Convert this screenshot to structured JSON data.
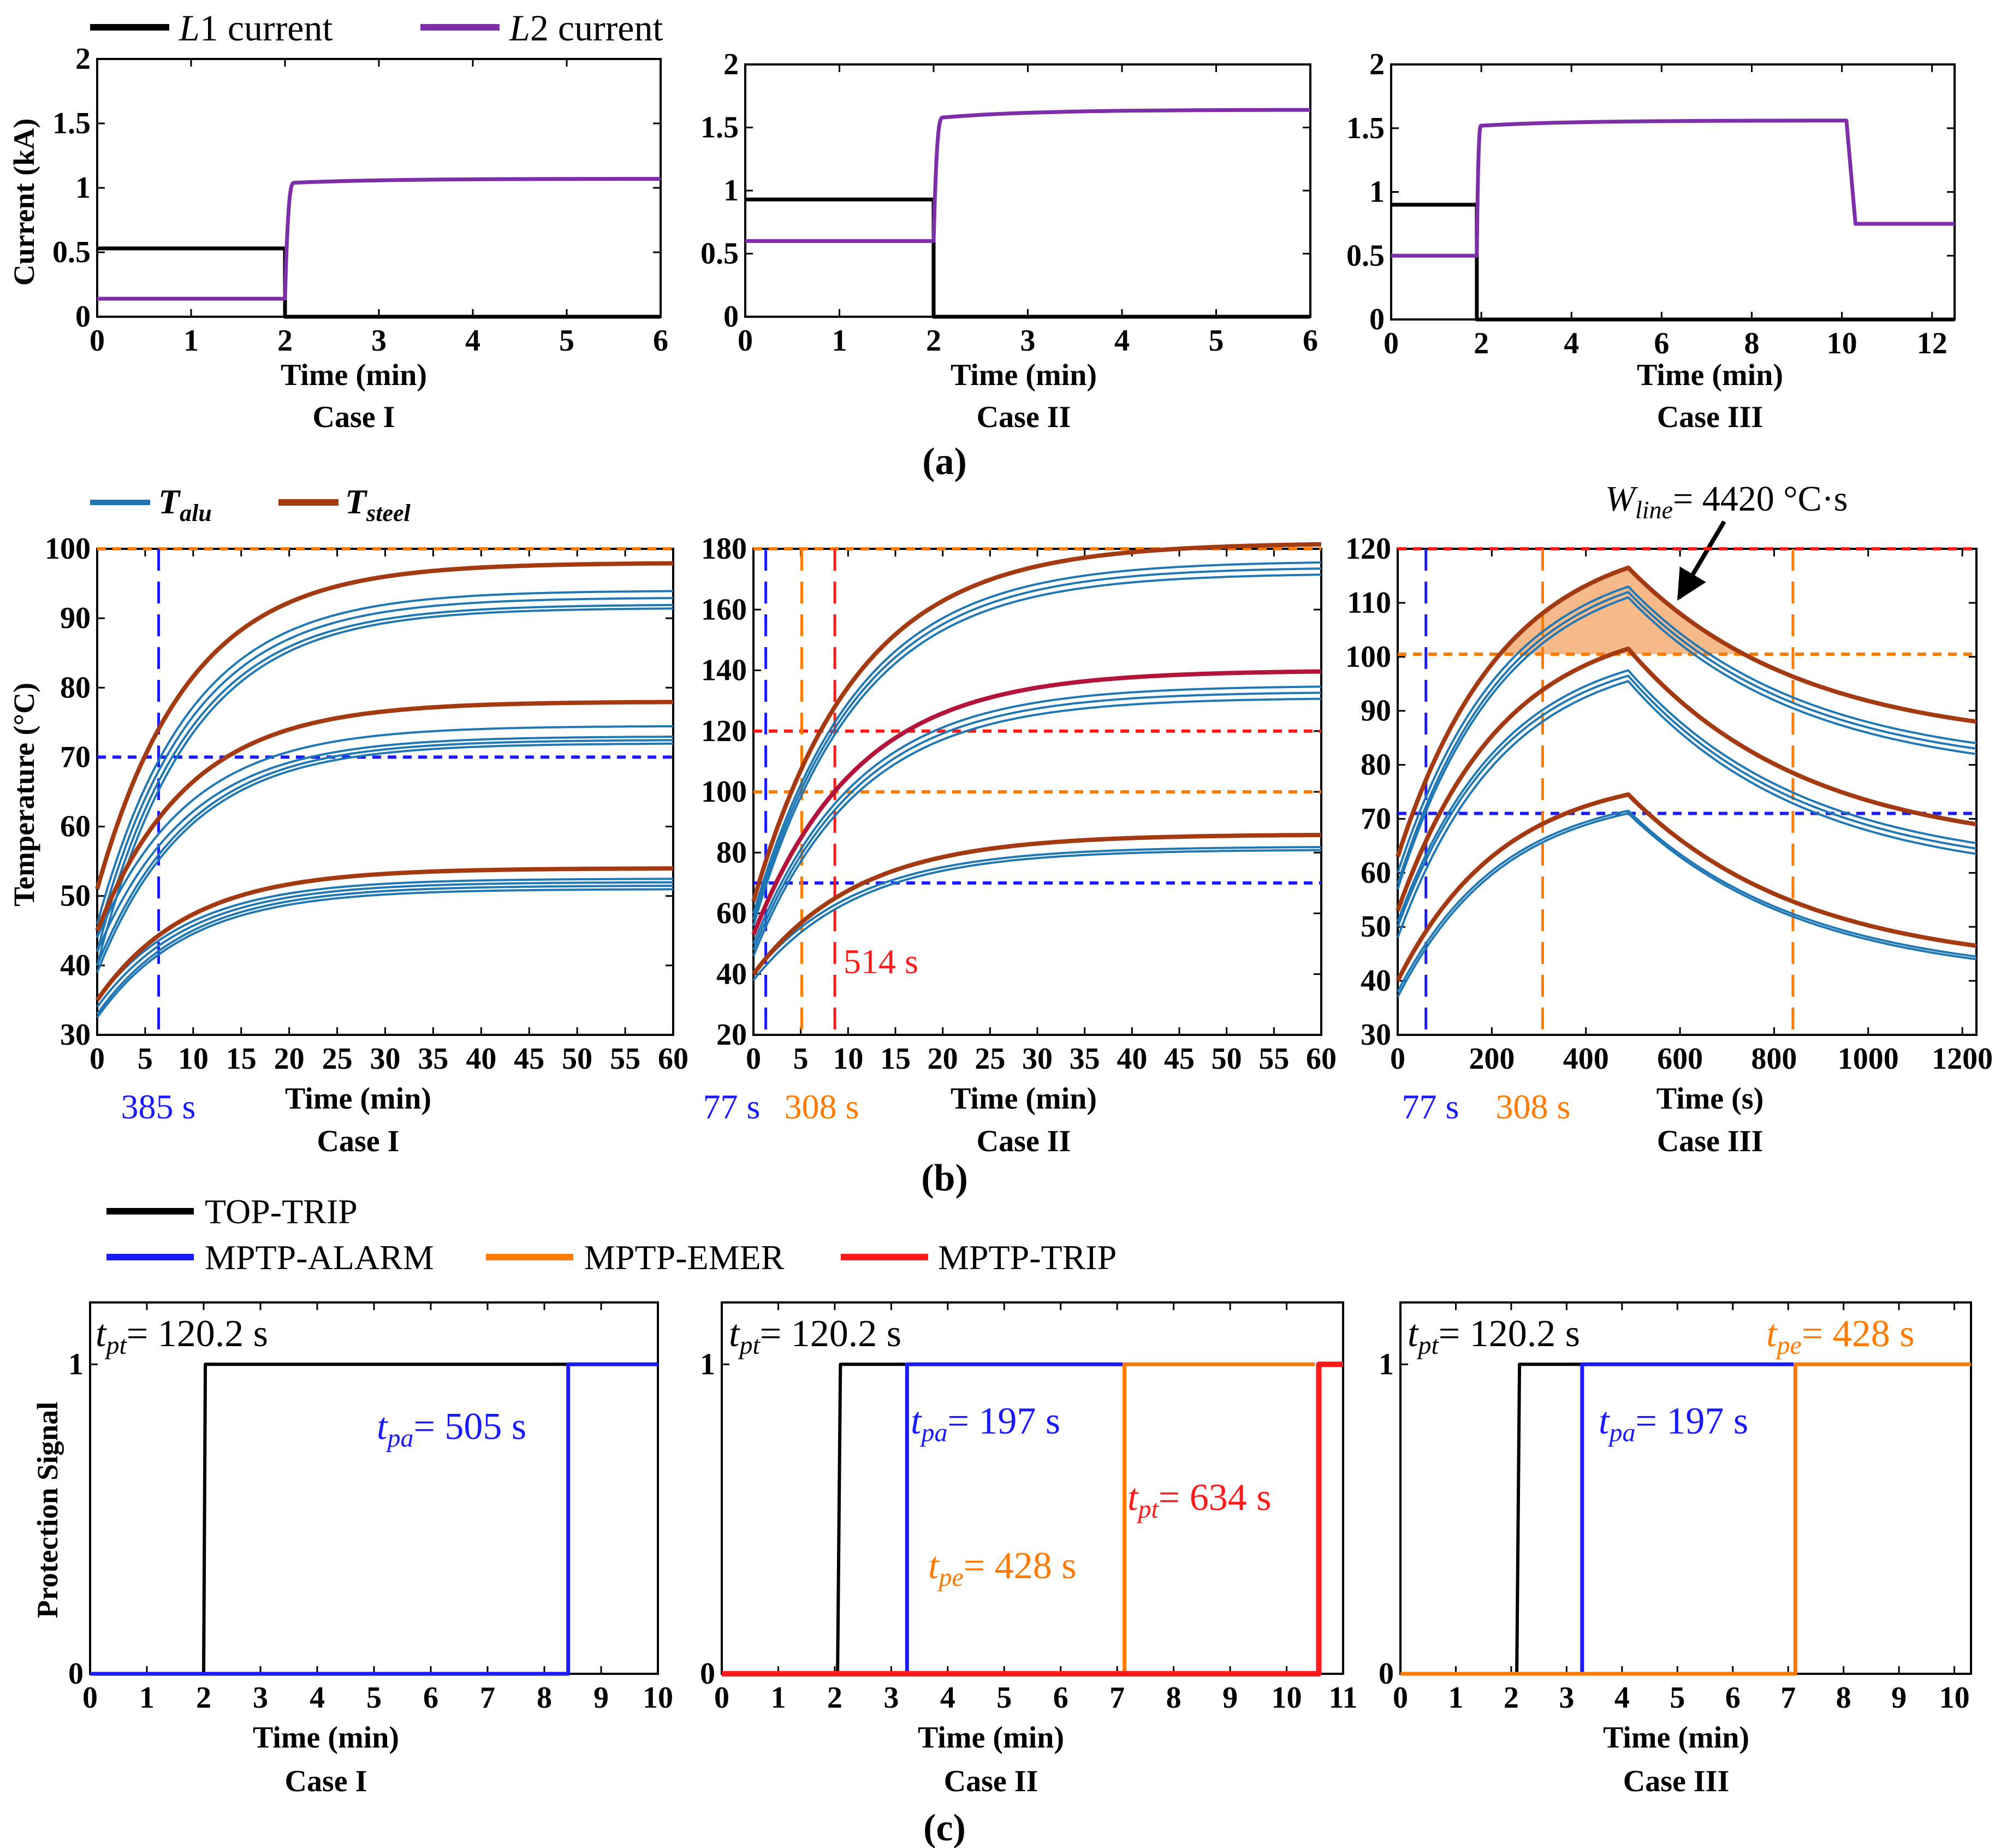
{
  "colors": {
    "L1": "#000000",
    "L2": "#7d2ea8",
    "alu": "#1f77b4",
    "steel": "#a33a12",
    "steel_mid": "#b3143a",
    "blue": "#1a1aff",
    "orange": "#ff7a00",
    "red": "#ff1a1a",
    "fill": "#f5b98a"
  },
  "legend_a": {
    "l1_italic": "L",
    "l1_rest": "1 current",
    "l2_italic": "L",
    "l2_rest": "2 current"
  },
  "legend_b": {
    "alu_main": "T",
    "alu_sub": "alu",
    "steel_main": "T",
    "steel_sub": "steel"
  },
  "legend_c": {
    "top_trip": "TOP-TRIP",
    "alarm": "MPTP-ALARM",
    "emer": "MPTP-EMER",
    "trip": "MPTP-TRIP"
  },
  "panel_labels": {
    "a": "(a)",
    "b": "(b)",
    "c": "(c)"
  },
  "cases": {
    "c1": "Case I",
    "c2": "Case II",
    "c3": "Case III"
  },
  "axis_labels": {
    "current_y": "Current (kA)",
    "temp_y": "Temperature (°C)",
    "prot_y": "Protection Signal",
    "time_min": "Time (min)",
    "time_s": "Time (s)"
  },
  "ticks": {
    "a_y": [
      "0",
      "0.5",
      "1",
      "1.5",
      "2"
    ],
    "x_0_6": [
      "0",
      "1",
      "2",
      "3",
      "4",
      "5",
      "6"
    ],
    "x_0_12": [
      "0",
      "2",
      "4",
      "6",
      "8",
      "10",
      "12"
    ],
    "b1_y": [
      "30",
      "40",
      "50",
      "60",
      "70",
      "80",
      "90",
      "100"
    ],
    "b2_y": [
      "20",
      "40",
      "60",
      "80",
      "100",
      "120",
      "140",
      "160",
      "180"
    ],
    "b3_y": [
      "30",
      "40",
      "50",
      "60",
      "70",
      "80",
      "90",
      "100",
      "110",
      "120"
    ],
    "x_0_60": [
      "0",
      "5",
      "10",
      "15",
      "20",
      "25",
      "30",
      "35",
      "40",
      "45",
      "50",
      "55",
      "60"
    ],
    "x_0_1200": [
      "0",
      "200",
      "400",
      "600",
      "800",
      "1000",
      "1200"
    ],
    "c_y": [
      "0",
      "1"
    ],
    "x_0_10": [
      "0",
      "1",
      "2",
      "3",
      "4",
      "5",
      "6",
      "7",
      "8",
      "9",
      "10"
    ],
    "x_0_11": [
      "0",
      "1",
      "2",
      "3",
      "4",
      "5",
      "6",
      "7",
      "8",
      "9",
      "10",
      "11"
    ]
  },
  "annotations_b": {
    "b1_blue": "385 s",
    "b2_blue": "77 s",
    "b2_orange": "308 s",
    "b2_red": "514 s",
    "b3_blue": "77 s",
    "b3_orange": "308 s",
    "wline_main": "W",
    "wline_sub": "line",
    "wline_value": "= 4420 °C·s"
  },
  "annotations_c": {
    "c1_tpt_main": "t",
    "c1_tpt_sub": "pt",
    "c1_tpt_val": "= 120.2 s",
    "c1_tpa_main": "t",
    "c1_tpa_sub": "pa",
    "c1_tpa_val": "= 505 s",
    "c2_tpt_main": "t",
    "c2_tpt_sub": "pt",
    "c2_tpt_val": "= 120.2 s",
    "c2_tpa_main": "t",
    "c2_tpa_sub": "pa",
    "c2_tpa_val": "= 197 s",
    "c2_tpe_main": "t",
    "c2_tpe_sub": "pe",
    "c2_tpe_val": "= 428 s",
    "c2_tptr_main": "t",
    "c2_tptr_sub": "pt",
    "c2_tptr_val": "= 634 s",
    "c3_tpt_main": "t",
    "c3_tpt_sub": "pt",
    "c3_tpt_val": "= 120.2 s",
    "c3_tpa_main": "t",
    "c3_tpa_sub": "pa",
    "c3_tpa_val": "= 197 s",
    "c3_tpe_main": "t",
    "c3_tpe_sub": "pe",
    "c3_tpe_val": "= 428 s"
  },
  "chart_data": [
    {
      "id": "a1",
      "type": "line",
      "title": "Case I",
      "xlabel": "Time (min)",
      "ylabel": "Current (kA)",
      "xlim": [
        0,
        6
      ],
      "ylim": [
        0,
        2
      ],
      "series": [
        {
          "name": "L1 current",
          "x": [
            0,
            2,
            2,
            6
          ],
          "y": [
            0.53,
            0.53,
            0,
            0
          ]
        },
        {
          "name": "L2 current",
          "x": [
            0,
            2,
            2.1,
            6
          ],
          "y": [
            0.14,
            0.14,
            1.04,
            1.07
          ]
        }
      ]
    },
    {
      "id": "a2",
      "type": "line",
      "title": "Case II",
      "xlabel": "Time (min)",
      "ylabel": "",
      "xlim": [
        0,
        6
      ],
      "ylim": [
        0,
        2
      ],
      "series": [
        {
          "name": "L1 current",
          "x": [
            0,
            2,
            2,
            6
          ],
          "y": [
            0.93,
            0.93,
            0,
            0
          ]
        },
        {
          "name": "L2 current",
          "x": [
            0,
            2,
            2.1,
            6
          ],
          "y": [
            0.6,
            0.6,
            1.58,
            1.64
          ]
        }
      ]
    },
    {
      "id": "a3",
      "type": "line",
      "title": "Case III",
      "xlabel": "Time (min)",
      "ylabel": "",
      "xlim": [
        0,
        12.5
      ],
      "ylim": [
        0,
        2
      ],
      "series": [
        {
          "name": "L1 current",
          "x": [
            0,
            1.9,
            1.9,
            12.5
          ],
          "y": [
            0.9,
            0.9,
            0,
            0
          ]
        },
        {
          "name": "L2 current",
          "x": [
            0,
            1.9,
            2.0,
            10.1,
            10.3,
            12.5
          ],
          "y": [
            0.5,
            0.5,
            1.52,
            1.56,
            0.75,
            0.75
          ]
        }
      ]
    },
    {
      "id": "b1",
      "type": "line",
      "title": "Case I",
      "xlabel": "Time (min)",
      "ylabel": "Temperature (°C)",
      "xlim": [
        0,
        60
      ],
      "ylim": [
        30,
        100
      ],
      "tau": 9.5,
      "steel": [
        {
          "start": 51,
          "final": 98
        },
        {
          "start": 45,
          "final": 78
        },
        {
          "start": 35,
          "final": 54
        }
      ],
      "alu": [
        {
          "start": 46,
          "final": 94
        },
        {
          "start": 44,
          "final": 93
        },
        {
          "start": 42,
          "final": 92
        },
        {
          "start": 40,
          "final": 91.5
        },
        {
          "start": 44,
          "final": 74.5
        },
        {
          "start": 42,
          "final": 73
        },
        {
          "start": 40,
          "final": 72.5
        },
        {
          "start": 39,
          "final": 72
        },
        {
          "start": 35,
          "final": 52.5
        },
        {
          "start": 34,
          "final": 52
        },
        {
          "start": 33,
          "final": 51.5
        },
        {
          "start": 32.5,
          "final": 51
        }
      ],
      "thresholds": [
        {
          "color": "blue",
          "value": 70
        },
        {
          "color": "orange",
          "value": 100
        }
      ],
      "vlines": [
        {
          "color": "blue",
          "x": 6.4
        }
      ]
    },
    {
      "id": "b2",
      "type": "line",
      "title": "Case II",
      "xlabel": "Time (min)",
      "ylabel": "",
      "xlim": [
        0,
        60
      ],
      "ylim": [
        20,
        180
      ],
      "tau": 11,
      "steel": [
        {
          "start": 64,
          "final": 182
        },
        {
          "start": 53,
          "final": 140
        },
        {
          "start": 40,
          "final": 86
        }
      ],
      "alu": [
        {
          "start": 60,
          "final": 176
        },
        {
          "start": 58,
          "final": 174
        },
        {
          "start": 56,
          "final": 172
        },
        {
          "start": 50,
          "final": 135
        },
        {
          "start": 48,
          "final": 133
        },
        {
          "start": 46,
          "final": 131
        },
        {
          "start": 40,
          "final": 82
        },
        {
          "start": 38,
          "final": 81
        }
      ],
      "thresholds": [
        {
          "color": "blue",
          "value": 70
        },
        {
          "color": "orange",
          "value": 100
        },
        {
          "color": "red",
          "value": 120
        },
        {
          "color": "orange",
          "value": 180
        }
      ],
      "vlines": [
        {
          "color": "blue",
          "x": 1.3
        },
        {
          "color": "orange",
          "x": 5.1
        },
        {
          "color": "red",
          "x": 8.6
        }
      ]
    },
    {
      "id": "b3",
      "type": "line",
      "title": "Case III",
      "xlabel": "Time (s)",
      "ylabel": "",
      "xlim": [
        0,
        1230
      ],
      "ylim": [
        30,
        120
      ],
      "peak_x": 490,
      "steel": [
        {
          "start": 63,
          "peak": 116.5,
          "end": 88
        },
        {
          "start": 53,
          "peak": 101.5,
          "end": 69
        },
        {
          "start": 40,
          "peak": 74.5,
          "end": 46.5
        }
      ],
      "alu": [
        {
          "start": 60,
          "peak": 113,
          "end": 84
        },
        {
          "start": 58,
          "peak": 112,
          "end": 83
        },
        {
          "start": 57,
          "peak": 111,
          "end": 82
        },
        {
          "start": 51,
          "peak": 97.5,
          "end": 65.5
        },
        {
          "start": 50,
          "peak": 96.5,
          "end": 64.5
        },
        {
          "start": 48,
          "peak": 95.5,
          "end": 63.5
        },
        {
          "start": 38,
          "peak": 71.5,
          "end": 44.5
        },
        {
          "start": 37,
          "peak": 71,
          "end": 44
        }
      ],
      "thresholds": [
        {
          "color": "blue",
          "value": 71
        },
        {
          "color": "orange",
          "value": 100.5
        },
        {
          "color": "red",
          "value": 120
        }
      ],
      "vlines": [
        {
          "color": "blue",
          "x": 60
        },
        {
          "color": "orange",
          "x": 308
        },
        {
          "color": "orange",
          "x": 840
        }
      ],
      "shaded_above": 100.5
    },
    {
      "id": "c1",
      "type": "line",
      "title": "Case I",
      "xlabel": "Time (min)",
      "ylabel": "Protection Signal",
      "xlim": [
        0,
        10
      ],
      "ylim": [
        0,
        1.2
      ],
      "series": [
        {
          "name": "TOP-TRIP",
          "x": [
            0,
            2,
            2.03,
            10
          ],
          "y": [
            0,
            0,
            1,
            1
          ]
        },
        {
          "name": "MPTP-ALARM",
          "x": [
            0,
            8.42,
            8.42,
            10
          ],
          "y": [
            0,
            0,
            1,
            1
          ]
        }
      ]
    },
    {
      "id": "c2",
      "type": "line",
      "title": "Case II",
      "xlabel": "Time (min)",
      "ylabel": "",
      "xlim": [
        0,
        11
      ],
      "ylim": [
        0,
        1.2
      ],
      "series": [
        {
          "name": "TOP-TRIP",
          "x": [
            0,
            2.05,
            2.1,
            3.25
          ],
          "y": [
            0,
            0,
            1,
            1
          ]
        },
        {
          "name": "MPTP-ALARM",
          "x": [
            0,
            3.28,
            3.28,
            7.1
          ],
          "y": [
            0,
            0,
            1,
            1
          ]
        },
        {
          "name": "MPTP-EMER",
          "x": [
            0,
            7.13,
            7.13,
            10.5
          ],
          "y": [
            0,
            0,
            1,
            1
          ]
        },
        {
          "name": "MPTP-TRIP",
          "x": [
            0,
            10.57,
            10.57,
            11
          ],
          "y": [
            0,
            0,
            1,
            1
          ]
        }
      ]
    },
    {
      "id": "c3",
      "type": "line",
      "title": "Case III",
      "xlabel": "Time (min)",
      "ylabel": "",
      "xlim": [
        0,
        10.3
      ],
      "ylim": [
        0,
        1.2
      ],
      "series": [
        {
          "name": "TOP-TRIP",
          "x": [
            0,
            2.1,
            2.15,
            3.28
          ],
          "y": [
            0,
            0,
            1,
            1
          ]
        },
        {
          "name": "MPTP-ALARM",
          "x": [
            0,
            3.28,
            3.28,
            7.1
          ],
          "y": [
            0,
            0,
            1,
            1
          ]
        },
        {
          "name": "MPTP-EMER",
          "x": [
            0,
            7.13,
            7.13,
            10.3
          ],
          "y": [
            0,
            0,
            1,
            1
          ]
        }
      ]
    }
  ]
}
